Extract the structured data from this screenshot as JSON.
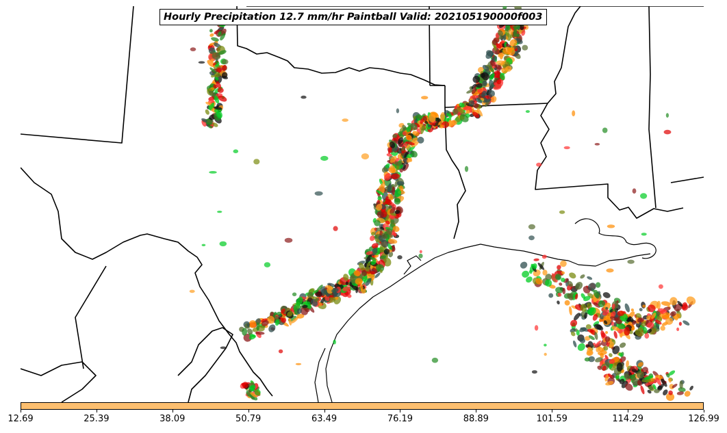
{
  "title": "Hourly Precipitation 12.7 mm/hr Paintball Valid: 202105190000f003",
  "colorbar": {
    "color": "#fdbf6f",
    "ticks": [
      "12.69",
      "25.39",
      "38.09",
      "50.79",
      "63.49",
      "76.19",
      "88.89",
      "101.59",
      "114.29",
      "126.99"
    ]
  },
  "paint_colors": [
    "#ff8c00",
    "#ff9e1f",
    "#e00000",
    "#ff3030",
    "#8b1a1a",
    "#228b22",
    "#00cc22",
    "#7a8b10",
    "#556b2f",
    "#2f4f4f",
    "#101010"
  ],
  "map": {
    "coastline_color": "#000000",
    "ocean_color": "#ffffff"
  }
}
